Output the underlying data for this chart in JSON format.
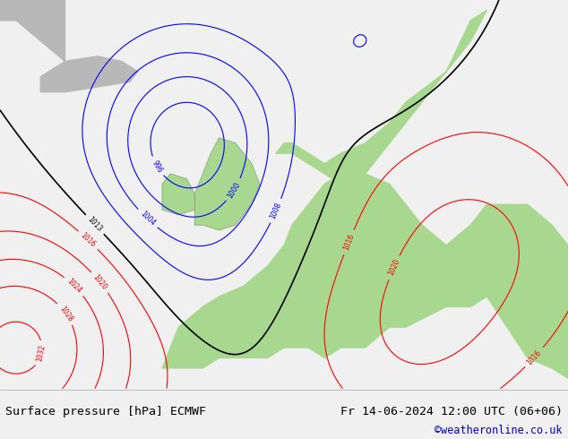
{
  "title_left": "Surface pressure [hPa] ECMWF",
  "title_right": "Fr 14-06-2024 12:00 UTC (06+06)",
  "credit": "©weatheronline.co.uk",
  "bg_color": "#c8d8c8",
  "land_color": "#a8d890",
  "sea_color": "#c0c8d0",
  "border_color": "#888888",
  "footer_bg": "#f0f0f0",
  "footer_text_color": "#000000",
  "credit_color": "#0000cc",
  "fig_width": 6.34,
  "fig_height": 4.9,
  "dpi": 100
}
